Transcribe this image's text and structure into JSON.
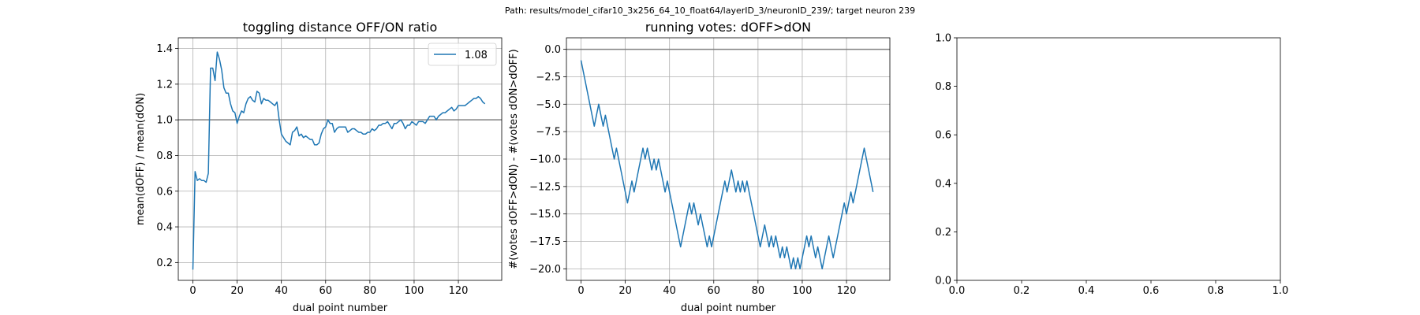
{
  "suptitle": "Path: results/model_cifar10_3x256_64_10_float64/layerID_3/neuronID_239/; target neuron 239",
  "colors": {
    "series": "#1f77b4",
    "refline": "#808080",
    "grid": "#b0b0b0",
    "axis": "#000000"
  },
  "chart_data": [
    {
      "type": "line",
      "title": "toggling distance OFF/ON ratio",
      "xlabel": "dual point number",
      "ylabel": "mean(dOFF) / mean(dON)",
      "xlim": [
        -6.6,
        139.6
      ],
      "ylim": [
        0.1,
        1.46
      ],
      "xticks": [
        0,
        20,
        40,
        60,
        80,
        100,
        120
      ],
      "yticks": [
        0.2,
        0.4,
        0.6,
        0.8,
        1.0,
        1.2,
        1.4
      ],
      "xtick_labels": [
        "0",
        "20",
        "40",
        "60",
        "80",
        "100",
        "120"
      ],
      "ytick_labels": [
        "0.2",
        "0.4",
        "0.6",
        "0.8",
        "1.0",
        "1.2",
        "1.4"
      ],
      "grid": true,
      "hline": 1.0,
      "legend": {
        "placement": "upper right",
        "entries": [
          "1.08"
        ]
      },
      "series": [
        {
          "name": "1.08",
          "x": [
            0,
            1,
            2,
            3,
            4,
            5,
            6,
            7,
            8,
            9,
            10,
            11,
            12,
            13,
            14,
            15,
            16,
            17,
            18,
            19,
            20,
            21,
            22,
            23,
            24,
            25,
            26,
            27,
            28,
            29,
            30,
            31,
            32,
            33,
            34,
            35,
            36,
            37,
            38,
            39,
            40,
            41,
            42,
            43,
            44,
            45,
            46,
            47,
            48,
            49,
            50,
            51,
            52,
            53,
            54,
            55,
            56,
            57,
            58,
            59,
            60,
            61,
            62,
            63,
            64,
            65,
            66,
            67,
            68,
            69,
            70,
            71,
            72,
            73,
            74,
            75,
            76,
            77,
            78,
            79,
            80,
            81,
            82,
            83,
            84,
            85,
            86,
            87,
            88,
            89,
            90,
            91,
            92,
            93,
            94,
            95,
            96,
            97,
            98,
            99,
            100,
            101,
            102,
            103,
            104,
            105,
            106,
            107,
            108,
            109,
            110,
            111,
            112,
            113,
            114,
            115,
            116,
            117,
            118,
            119,
            120,
            121,
            122,
            123,
            124,
            125,
            126,
            127,
            128,
            129,
            130,
            131,
            132
          ],
          "y": [
            0.16,
            0.71,
            0.66,
            0.67,
            0.66,
            0.66,
            0.65,
            0.7,
            1.29,
            1.29,
            1.22,
            1.38,
            1.34,
            1.28,
            1.18,
            1.15,
            1.15,
            1.09,
            1.05,
            1.04,
            0.98,
            1.02,
            1.05,
            1.04,
            1.09,
            1.12,
            1.13,
            1.11,
            1.1,
            1.16,
            1.15,
            1.09,
            1.12,
            1.11,
            1.11,
            1.1,
            1.09,
            1.08,
            1.1,
            1.0,
            0.92,
            0.9,
            0.88,
            0.87,
            0.86,
            0.93,
            0.94,
            0.96,
            0.91,
            0.92,
            0.9,
            0.91,
            0.9,
            0.89,
            0.89,
            0.86,
            0.86,
            0.87,
            0.92,
            0.95,
            0.96,
            1.0,
            0.98,
            0.98,
            0.93,
            0.95,
            0.96,
            0.96,
            0.96,
            0.96,
            0.93,
            0.94,
            0.95,
            0.95,
            0.94,
            0.93,
            0.93,
            0.92,
            0.92,
            0.93,
            0.93,
            0.95,
            0.94,
            0.95,
            0.97,
            0.97,
            0.98,
            0.98,
            0.99,
            0.97,
            0.95,
            0.98,
            0.98,
            0.99,
            1.0,
            0.98,
            0.95,
            0.97,
            0.97,
            0.99,
            0.98,
            0.97,
            0.99,
            0.99,
            0.99,
            0.98,
            1.0,
            1.02,
            1.02,
            1.02,
            1.0,
            1.02,
            1.03,
            1.04,
            1.04,
            1.05,
            1.06,
            1.07,
            1.05,
            1.06,
            1.08,
            1.08,
            1.08,
            1.08,
            1.09,
            1.1,
            1.11,
            1.12,
            1.12,
            1.13,
            1.12,
            1.1,
            1.09
          ]
        }
      ]
    },
    {
      "type": "line",
      "title": "running votes: dOFF>dON",
      "xlabel": "dual point number",
      "ylabel": "#(votes dOFF>dON) - #(votes dON>dOFF)",
      "xlim": [
        -6.6,
        139.6
      ],
      "ylim": [
        -21.05,
        1.05
      ],
      "xticks": [
        0,
        20,
        40,
        60,
        80,
        100,
        120
      ],
      "yticks": [
        0.0,
        -2.5,
        -5.0,
        -7.5,
        -10.0,
        -12.5,
        -15.0,
        -17.5,
        -20.0
      ],
      "xtick_labels": [
        "0",
        "20",
        "40",
        "60",
        "80",
        "100",
        "120"
      ],
      "ytick_labels": [
        "0.0",
        "−2.5",
        "−5.0",
        "−7.5",
        "−10.0",
        "−12.5",
        "−15.0",
        "−17.5",
        "−20.0"
      ],
      "grid": true,
      "hline": 0.0,
      "series": [
        {
          "x": [
            0,
            1,
            2,
            3,
            4,
            5,
            6,
            7,
            8,
            9,
            10,
            11,
            12,
            13,
            14,
            15,
            16,
            17,
            18,
            19,
            20,
            21,
            22,
            23,
            24,
            25,
            26,
            27,
            28,
            29,
            30,
            31,
            32,
            33,
            34,
            35,
            36,
            37,
            38,
            39,
            40,
            41,
            42,
            43,
            44,
            45,
            46,
            47,
            48,
            49,
            50,
            51,
            52,
            53,
            54,
            55,
            56,
            57,
            58,
            59,
            60,
            61,
            62,
            63,
            64,
            65,
            66,
            67,
            68,
            69,
            70,
            71,
            72,
            73,
            74,
            75,
            76,
            77,
            78,
            79,
            80,
            81,
            82,
            83,
            84,
            85,
            86,
            87,
            88,
            89,
            90,
            91,
            92,
            93,
            94,
            95,
            96,
            97,
            98,
            99,
            100,
            101,
            102,
            103,
            104,
            105,
            106,
            107,
            108,
            109,
            110,
            111,
            112,
            113,
            114,
            115,
            116,
            117,
            118,
            119,
            120,
            121,
            122,
            123,
            124,
            125,
            126,
            127,
            128,
            129,
            130,
            131,
            132
          ],
          "y": [
            -1,
            -2,
            -3,
            -4,
            -5,
            -6,
            -7,
            -6,
            -5,
            -6,
            -7,
            -6,
            -7,
            -8,
            -9,
            -10,
            -9,
            -10,
            -11,
            -12,
            -13,
            -14,
            -13,
            -12,
            -13,
            -12,
            -11,
            -10,
            -9,
            -10,
            -9,
            -10,
            -11,
            -10,
            -11,
            -10,
            -11,
            -12,
            -13,
            -12,
            -13,
            -14,
            -15,
            -16,
            -17,
            -18,
            -17,
            -16,
            -15,
            -14,
            -15,
            -14,
            -15,
            -16,
            -15,
            -16,
            -17,
            -18,
            -17,
            -18,
            -17,
            -16,
            -15,
            -14,
            -13,
            -12,
            -13,
            -12,
            -11,
            -12,
            -13,
            -12,
            -13,
            -12,
            -13,
            -12,
            -13,
            -14,
            -15,
            -16,
            -17,
            -18,
            -17,
            -16,
            -17,
            -18,
            -17,
            -18,
            -17,
            -18,
            -19,
            -18,
            -19,
            -18,
            -19,
            -20,
            -19,
            -20,
            -19,
            -20,
            -19,
            -18,
            -17,
            -18,
            -17,
            -18,
            -19,
            -18,
            -19,
            -20,
            -19,
            -18,
            -17,
            -18,
            -19,
            -18,
            -17,
            -16,
            -15,
            -14,
            -15,
            -14,
            -13,
            -14,
            -13,
            -12,
            -11,
            -10,
            -9,
            -10,
            -11,
            -12,
            -13
          ]
        }
      ]
    },
    {
      "type": "line",
      "title": "",
      "xlabel": "",
      "ylabel": "",
      "xlim": [
        0,
        1
      ],
      "ylim": [
        0,
        1
      ],
      "xticks": [
        0.0,
        0.2,
        0.4,
        0.6,
        0.8,
        1.0
      ],
      "yticks": [
        0.0,
        0.2,
        0.4,
        0.6,
        0.8,
        1.0
      ],
      "xtick_labels": [
        "0.0",
        "0.2",
        "0.4",
        "0.6",
        "0.8",
        "1.0"
      ],
      "ytick_labels": [
        "0.0",
        "0.2",
        "0.4",
        "0.6",
        "0.8",
        "1.0"
      ],
      "grid": false,
      "series": []
    }
  ]
}
